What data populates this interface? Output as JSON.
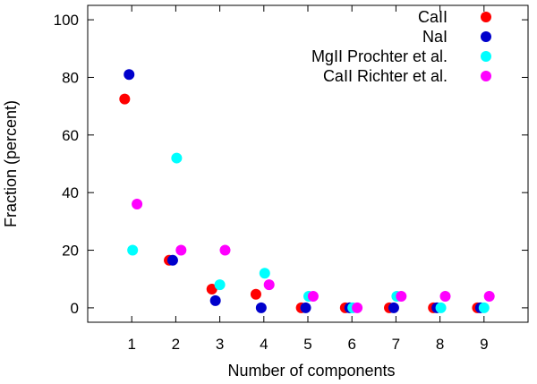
{
  "chart_data": {
    "type": "scatter",
    "xlabel": "Number of components",
    "ylabel": "Fraction (percent)",
    "xlim": [
      0,
      10
    ],
    "ylim": [
      -5,
      105
    ],
    "xticks": [
      1,
      2,
      3,
      4,
      5,
      6,
      7,
      8,
      9
    ],
    "yticks": [
      0,
      20,
      40,
      60,
      80,
      100
    ],
    "grid": false,
    "legend_position": "top-right",
    "series": [
      {
        "name": "CaII",
        "color": "#ff0000",
        "x": [
          0.84,
          1.85,
          2.82,
          3.82,
          4.85,
          5.85,
          6.85,
          7.85,
          8.85
        ],
        "y": [
          72.5,
          16.5,
          6.5,
          4.7,
          0,
          0,
          0,
          0,
          0
        ]
      },
      {
        "name": "NaI",
        "color": "#0000cc",
        "x": [
          0.94,
          1.93,
          2.9,
          3.94,
          4.95,
          5.95,
          6.95,
          7.93,
          8.92
        ],
        "y": [
          81,
          16.5,
          2.5,
          0,
          0,
          0,
          0,
          0,
          0
        ]
      },
      {
        "name": "MgII Prochter et al.",
        "color": "#00ffff",
        "x": [
          1.02,
          2.02,
          3.0,
          4.02,
          5.02,
          6.02,
          7.02,
          8.02,
          9.0
        ],
        "y": [
          20,
          52,
          8,
          12,
          4,
          0,
          4,
          0,
          0
        ]
      },
      {
        "name": "CaII Richter et al.",
        "color": "#ff00ff",
        "x": [
          1.12,
          2.12,
          3.12,
          4.12,
          5.12,
          6.12,
          7.12,
          8.12,
          9.12
        ],
        "y": [
          36,
          20,
          20,
          8,
          4,
          0,
          4,
          4,
          4
        ]
      }
    ]
  }
}
